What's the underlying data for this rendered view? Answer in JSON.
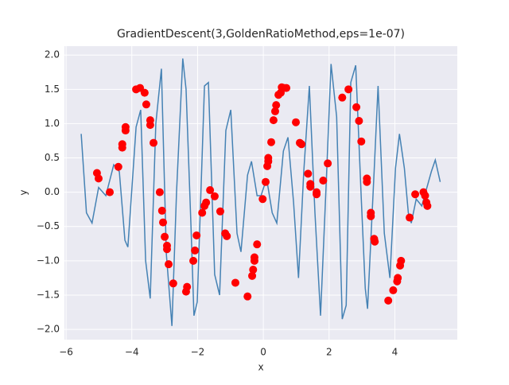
{
  "chart_data": {
    "type": "line",
    "title": "GradientDescent(3,GoldenRatioMethod,eps=1e-07)",
    "x_label": "x",
    "y_label": "y",
    "xlim": [
      -6.05,
      5.9
    ],
    "ylim": [
      -2.15,
      2.13
    ],
    "xticks": [
      {
        "value": -6,
        "label": "−6"
      },
      {
        "value": -4,
        "label": "−4"
      },
      {
        "value": -2,
        "label": "−2"
      },
      0,
      2,
      4
    ],
    "yticks": [
      {
        "value": 2,
        "label": "2.0"
      },
      1.5,
      {
        "value": 1,
        "label": "1.0"
      },
      0.5,
      {
        "value": 0,
        "label": "0.0"
      },
      {
        "value": -0.5,
        "label": "−0.5"
      },
      {
        "value": -1,
        "label": "−1.0"
      },
      {
        "value": -1.5,
        "label": "−1.5"
      },
      {
        "value": -2,
        "label": "−2.0"
      }
    ],
    "grid": true,
    "background": "#eaeaf2",
    "series": [
      {
        "type": "line",
        "color": "#4582b4",
        "x": [
          -5.54,
          -5.38,
          -5.21,
          -5.01,
          -4.79,
          -4.55,
          -4.38,
          -4.21,
          -4.12,
          -3.87,
          -3.73,
          -3.58,
          -3.44,
          -3.27,
          -3.1,
          -2.95,
          -2.78,
          -2.64,
          -2.45,
          -2.35,
          -2.2,
          -2.11,
          -2.01,
          -1.79,
          -1.67,
          -1.48,
          -1.33,
          -1.14,
          -0.99,
          -0.8,
          -0.68,
          -0.48,
          -0.36,
          -0.19,
          -0.07,
          0.1,
          0.27,
          0.41,
          0.61,
          0.75,
          0.92,
          1.07,
          1.23,
          1.4,
          1.57,
          1.74,
          1.91,
          2.06,
          2.23,
          2.4,
          2.52,
          2.66,
          2.81,
          2.98,
          3.1,
          3.17,
          3.37,
          3.49,
          3.68,
          3.85,
          4.02,
          4.14,
          4.29,
          4.41,
          4.5,
          4.65,
          4.82,
          5.11,
          5.23,
          5.38
        ],
        "values": [
          0.85,
          -0.3,
          -0.45,
          0.07,
          -0.05,
          0.4,
          0.3,
          -0.7,
          -0.8,
          0.95,
          1.2,
          -1.0,
          -1.55,
          1.0,
          1.8,
          -0.9,
          -1.95,
          0.0,
          1.95,
          1.5,
          -0.5,
          -1.8,
          -1.6,
          1.55,
          1.6,
          -1.2,
          -1.5,
          0.9,
          1.2,
          -0.6,
          -0.87,
          0.25,
          0.45,
          -0.05,
          -0.05,
          0.2,
          -0.3,
          -0.45,
          0.6,
          0.8,
          -0.15,
          -1.25,
          0.3,
          1.55,
          -0.3,
          -1.8,
          0.1,
          1.87,
          1.1,
          -1.85,
          -1.65,
          1.6,
          1.85,
          -0.1,
          -1.4,
          -1.7,
          0.3,
          1.55,
          -0.6,
          -1.25,
          0.35,
          0.85,
          0.35,
          -0.3,
          -0.45,
          -0.1,
          -0.2,
          0.3,
          0.47,
          0.15
        ]
      },
      {
        "type": "scatter",
        "color": "#ff0000",
        "x": [
          -5.06,
          -5.01,
          -4.67,
          -4.41,
          -4.29,
          -4.29,
          -4.19,
          -4.19,
          -3.87,
          -3.75,
          -3.61,
          -3.56,
          -3.44,
          -3.44,
          -3.34,
          -3.15,
          -3.08,
          -3.05,
          -3.0,
          -2.93,
          -2.93,
          -2.88,
          -2.74,
          -2.35,
          -2.32,
          -2.13,
          -2.08,
          -2.03,
          -1.86,
          -1.79,
          -1.74,
          -1.62,
          -1.48,
          -1.31,
          -1.16,
          -1.11,
          -0.85,
          -0.48,
          -0.34,
          -0.31,
          -0.27,
          -0.27,
          -0.19,
          -0.02,
          0.07,
          0.12,
          0.15,
          0.15,
          0.24,
          0.31,
          0.36,
          0.39,
          0.46,
          0.53,
          0.56,
          0.63,
          0.7,
          0.99,
          1.11,
          1.16,
          1.36,
          1.43,
          1.43,
          1.62,
          1.62,
          1.82,
          1.96,
          2.4,
          2.59,
          2.83,
          2.91,
          2.98,
          3.15,
          3.15,
          3.27,
          3.27,
          3.37,
          3.39,
          3.8,
          3.95,
          4.07,
          4.09,
          4.16,
          4.19,
          4.45,
          4.62,
          4.87,
          4.92,
          4.96,
          4.99
        ],
        "values": [
          0.28,
          0.2,
          0.0,
          0.37,
          0.7,
          0.65,
          0.95,
          0.9,
          1.5,
          1.52,
          1.45,
          1.28,
          1.05,
          0.98,
          0.72,
          0.0,
          -0.27,
          -0.44,
          -0.65,
          -0.78,
          -0.83,
          -1.05,
          -1.33,
          -1.45,
          -1.38,
          -1.0,
          -0.85,
          -0.63,
          -0.3,
          -0.2,
          -0.15,
          0.03,
          -0.06,
          -0.28,
          -0.6,
          -0.64,
          -1.32,
          -1.52,
          -1.22,
          -1.13,
          -0.95,
          -1.0,
          -0.76,
          -0.1,
          0.15,
          0.38,
          0.45,
          0.5,
          0.73,
          1.05,
          1.18,
          1.27,
          1.42,
          1.45,
          1.53,
          1.52,
          1.52,
          1.02,
          0.72,
          0.7,
          0.27,
          0.12,
          0.08,
          0.0,
          -0.03,
          0.17,
          0.42,
          1.38,
          1.5,
          1.24,
          1.04,
          0.74,
          0.2,
          0.15,
          -0.3,
          -0.35,
          -0.68,
          -0.72,
          -1.58,
          -1.43,
          -1.3,
          -1.25,
          -1.07,
          -1.0,
          -0.37,
          -0.03,
          0.0,
          -0.05,
          -0.15,
          -0.2
        ]
      }
    ]
  }
}
